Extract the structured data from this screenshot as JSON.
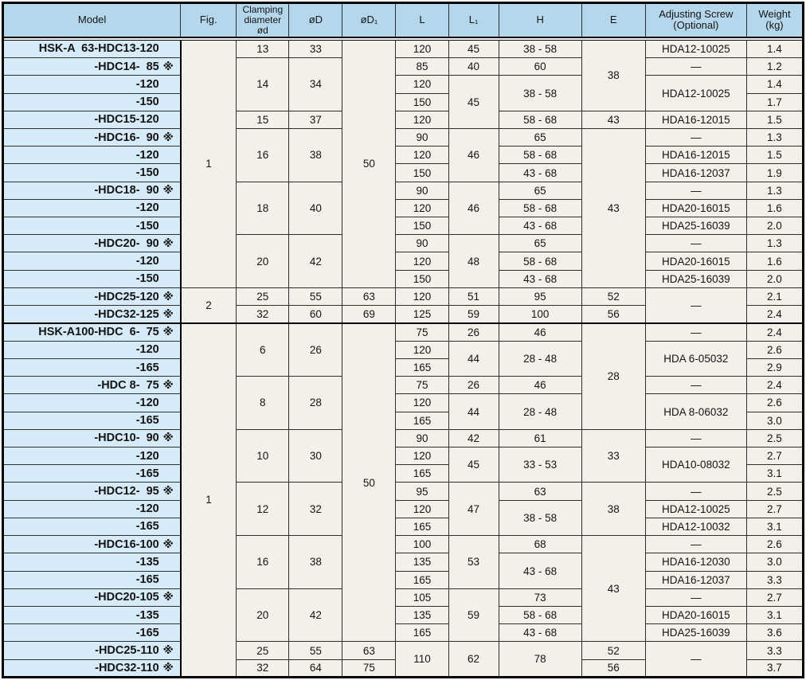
{
  "colors": {
    "header_bg": "#b5d7ec",
    "model_column_bg": "#d7eaf8",
    "data_cell_bg": "#f2f0e8",
    "grid_line": "#2e2e2e",
    "heavy_line": "#000000"
  },
  "table": {
    "columns": [
      {
        "label": "Model"
      },
      {
        "label": "Fig."
      },
      {
        "label": "Clamping\ndiameter\nød"
      },
      {
        "label": "øD"
      },
      {
        "label": "øD₁"
      },
      {
        "label": "L"
      },
      {
        "label": "L₁"
      },
      {
        "label": "H"
      },
      {
        "label": "E"
      },
      {
        "label": "Adjusting Screw\n(Optional)"
      },
      {
        "label": "Weight\n(kg)"
      }
    ],
    "sections": [
      {
        "rows": [
          [
            {
              "t": "HSK-A  63-HDC13-120"
            },
            {
              "t": "1",
              "rs": 14
            },
            {
              "t": "13"
            },
            {
              "t": "33"
            },
            {
              "t": "50",
              "rs": 14
            },
            {
              "t": "120"
            },
            {
              "t": "45"
            },
            {
              "t": "38 - 58"
            },
            {
              "t": "38",
              "rs": 4
            },
            {
              "t": "HDA12-10025"
            },
            {
              "t": "1.4"
            }
          ],
          [
            {
              "t": "-HDC14-  85",
              "m": "※"
            },
            {
              "t": "14",
              "rs": 3
            },
            {
              "t": "34",
              "rs": 3
            },
            {
              "t": "85"
            },
            {
              "t": "40"
            },
            {
              "t": "60"
            },
            {
              "t": "—"
            },
            {
              "t": "1.2"
            }
          ],
          [
            {
              "t": "-120"
            },
            {
              "t": "120"
            },
            {
              "t": "45",
              "rs": 3
            },
            {
              "t": "38 - 58",
              "rs": 2
            },
            {
              "t": "HDA12-10025",
              "rs": 2
            },
            {
              "t": "1.4"
            }
          ],
          [
            {
              "t": "-150"
            },
            {
              "t": "150"
            },
            {
              "t": "1.7"
            }
          ],
          [
            {
              "t": "-HDC15-120"
            },
            {
              "t": "15"
            },
            {
              "t": "37"
            },
            {
              "t": "120"
            },
            {
              "t": "58 - 68"
            },
            {
              "t": "43"
            },
            {
              "t": "HDA16-12015"
            },
            {
              "t": "1.5"
            }
          ],
          [
            {
              "t": "-HDC16-  90",
              "m": "※"
            },
            {
              "t": "16",
              "rs": 3
            },
            {
              "t": "38",
              "rs": 3
            },
            {
              "t": "90"
            },
            {
              "t": "46",
              "rs": 3
            },
            {
              "t": "65"
            },
            {
              "t": "43",
              "rs": 9
            },
            {
              "t": "—"
            },
            {
              "t": "1.3"
            }
          ],
          [
            {
              "t": "-120"
            },
            {
              "t": "120"
            },
            {
              "t": "58 - 68"
            },
            {
              "t": "HDA16-12015"
            },
            {
              "t": "1.5"
            }
          ],
          [
            {
              "t": "-150"
            },
            {
              "t": "150"
            },
            {
              "t": "43 - 68"
            },
            {
              "t": "HDA16-12037"
            },
            {
              "t": "1.9"
            }
          ],
          [
            {
              "t": "-HDC18-  90",
              "m": "※"
            },
            {
              "t": "18",
              "rs": 3
            },
            {
              "t": "40",
              "rs": 3
            },
            {
              "t": "90"
            },
            {
              "t": "46",
              "rs": 3
            },
            {
              "t": "65"
            },
            {
              "t": "—"
            },
            {
              "t": "1.3"
            }
          ],
          [
            {
              "t": "-120"
            },
            {
              "t": "120"
            },
            {
              "t": "58 - 68"
            },
            {
              "t": "HDA20-16015"
            },
            {
              "t": "1.6"
            }
          ],
          [
            {
              "t": "-150"
            },
            {
              "t": "150"
            },
            {
              "t": "43 - 68"
            },
            {
              "t": "HDA25-16039"
            },
            {
              "t": "2.0"
            }
          ],
          [
            {
              "t": "-HDC20-  90",
              "m": "※"
            },
            {
              "t": "20",
              "rs": 3
            },
            {
              "t": "42",
              "rs": 3
            },
            {
              "t": "90"
            },
            {
              "t": "48",
              "rs": 3
            },
            {
              "t": "65"
            },
            {
              "t": "—"
            },
            {
              "t": "1.3"
            }
          ],
          [
            {
              "t": "-120"
            },
            {
              "t": "120"
            },
            {
              "t": "58 - 68"
            },
            {
              "t": "HDA20-16015"
            },
            {
              "t": "1.6"
            }
          ],
          [
            {
              "t": "-150"
            },
            {
              "t": "150"
            },
            {
              "t": "43 - 68"
            },
            {
              "t": "HDA25-16039"
            },
            {
              "t": "2.0"
            }
          ],
          [
            {
              "t": "-HDC25-120",
              "m": "※"
            },
            {
              "t": "2",
              "rs": 2
            },
            {
              "t": "25"
            },
            {
              "t": "55"
            },
            {
              "t": "63"
            },
            {
              "t": "120"
            },
            {
              "t": "51"
            },
            {
              "t": "95"
            },
            {
              "t": "52"
            },
            {
              "t": "—",
              "rs": 2
            },
            {
              "t": "2.1"
            }
          ],
          [
            {
              "t": "-HDC32-125",
              "m": "※"
            },
            {
              "t": "32"
            },
            {
              "t": "60"
            },
            {
              "t": "69"
            },
            {
              "t": "125"
            },
            {
              "t": "59"
            },
            {
              "t": "100"
            },
            {
              "t": "56"
            },
            {
              "t": "2.4"
            }
          ]
        ]
      },
      {
        "rows": [
          [
            {
              "t": "HSK-A100-HDC  6-  75",
              "m": "※"
            },
            {
              "t": "1",
              "rs": 20
            },
            {
              "t": "6",
              "rs": 3
            },
            {
              "t": "26",
              "rs": 3
            },
            {
              "t": "50",
              "rs": 18
            },
            {
              "t": "75"
            },
            {
              "t": "26"
            },
            {
              "t": "46"
            },
            {
              "t": "28",
              "rs": 6
            },
            {
              "t": "—"
            },
            {
              "t": "2.4"
            }
          ],
          [
            {
              "t": "-120"
            },
            {
              "t": "120"
            },
            {
              "t": "44",
              "rs": 2
            },
            {
              "t": "28 - 48",
              "rs": 2
            },
            {
              "t": "HDA 6-05032",
              "rs": 2
            },
            {
              "t": "2.6"
            }
          ],
          [
            {
              "t": "-165"
            },
            {
              "t": "165"
            },
            {
              "t": "2.9"
            }
          ],
          [
            {
              "t": "-HDC 8-  75",
              "m": "※"
            },
            {
              "t": "8",
              "rs": 3
            },
            {
              "t": "28",
              "rs": 3
            },
            {
              "t": "75"
            },
            {
              "t": "26"
            },
            {
              "t": "46"
            },
            {
              "t": "—"
            },
            {
              "t": "2.4"
            }
          ],
          [
            {
              "t": "-120"
            },
            {
              "t": "120"
            },
            {
              "t": "44",
              "rs": 2
            },
            {
              "t": "28 - 48",
              "rs": 2
            },
            {
              "t": "HDA 8-06032",
              "rs": 2
            },
            {
              "t": "2.6"
            }
          ],
          [
            {
              "t": "-165"
            },
            {
              "t": "165"
            },
            {
              "t": "3.0"
            }
          ],
          [
            {
              "t": "-HDC10-  90",
              "m": "※"
            },
            {
              "t": "10",
              "rs": 3
            },
            {
              "t": "30",
              "rs": 3
            },
            {
              "t": "90"
            },
            {
              "t": "42"
            },
            {
              "t": "61"
            },
            {
              "t": "33",
              "rs": 3
            },
            {
              "t": "—"
            },
            {
              "t": "2.5"
            }
          ],
          [
            {
              "t": "-120"
            },
            {
              "t": "120"
            },
            {
              "t": "45",
              "rs": 2
            },
            {
              "t": "33 - 53",
              "rs": 2
            },
            {
              "t": "HDA10-08032",
              "rs": 2
            },
            {
              "t": "2.7"
            }
          ],
          [
            {
              "t": "-165"
            },
            {
              "t": "165"
            },
            {
              "t": "3.1"
            }
          ],
          [
            {
              "t": "-HDC12-  95",
              "m": "※"
            },
            {
              "t": "12",
              "rs": 3
            },
            {
              "t": "32",
              "rs": 3
            },
            {
              "t": "95"
            },
            {
              "t": "47",
              "rs": 3
            },
            {
              "t": "63"
            },
            {
              "t": "38",
              "rs": 3
            },
            {
              "t": "—"
            },
            {
              "t": "2.5"
            }
          ],
          [
            {
              "t": "-120"
            },
            {
              "t": "120"
            },
            {
              "t": "38 - 58",
              "rs": 2
            },
            {
              "t": "HDA12-10025"
            },
            {
              "t": "2.7"
            }
          ],
          [
            {
              "t": "-165"
            },
            {
              "t": "165"
            },
            {
              "t": "HDA12-10032"
            },
            {
              "t": "3.1"
            }
          ],
          [
            {
              "t": "-HDC16-100",
              "m": "※"
            },
            {
              "t": "16",
              "rs": 3
            },
            {
              "t": "38",
              "rs": 3
            },
            {
              "t": "100"
            },
            {
              "t": "53",
              "rs": 3
            },
            {
              "t": "68"
            },
            {
              "t": "43",
              "rs": 6
            },
            {
              "t": "—"
            },
            {
              "t": "2.6"
            }
          ],
          [
            {
              "t": "-135"
            },
            {
              "t": "135"
            },
            {
              "t": "43 - 68",
              "rs": 2
            },
            {
              "t": "HDA16-12030"
            },
            {
              "t": "3.0"
            }
          ],
          [
            {
              "t": "-165"
            },
            {
              "t": "165"
            },
            {
              "t": "HDA16-12037"
            },
            {
              "t": "3.3"
            }
          ],
          [
            {
              "t": "-HDC20-105",
              "m": "※"
            },
            {
              "t": "20",
              "rs": 3
            },
            {
              "t": "42",
              "rs": 3
            },
            {
              "t": "105"
            },
            {
              "t": "59",
              "rs": 3
            },
            {
              "t": "73"
            },
            {
              "t": "—"
            },
            {
              "t": "2.7"
            }
          ],
          [
            {
              "t": "-135"
            },
            {
              "t": "135"
            },
            {
              "t": "58 - 68"
            },
            {
              "t": "HDA20-16015"
            },
            {
              "t": "3.1"
            }
          ],
          [
            {
              "t": "-165"
            },
            {
              "t": "165"
            },
            {
              "t": "43 - 68"
            },
            {
              "t": "HDA25-16039"
            },
            {
              "t": "3.6"
            }
          ],
          [
            {
              "t": "-HDC25-110",
              "m": "※"
            },
            {
              "t": "25"
            },
            {
              "t": "55"
            },
            {
              "t": "63"
            },
            {
              "t": "110",
              "rs": 2
            },
            {
              "t": "62",
              "rs": 2
            },
            {
              "t": "78",
              "rs": 2
            },
            {
              "t": "52"
            },
            {
              "t": "—",
              "rs": 2
            },
            {
              "t": "3.3"
            }
          ],
          [
            {
              "t": "-HDC32-110",
              "m": "※"
            },
            {
              "t": "32"
            },
            {
              "t": "64"
            },
            {
              "t": "75"
            },
            {
              "t": "56"
            },
            {
              "t": "3.7"
            }
          ]
        ]
      }
    ]
  }
}
